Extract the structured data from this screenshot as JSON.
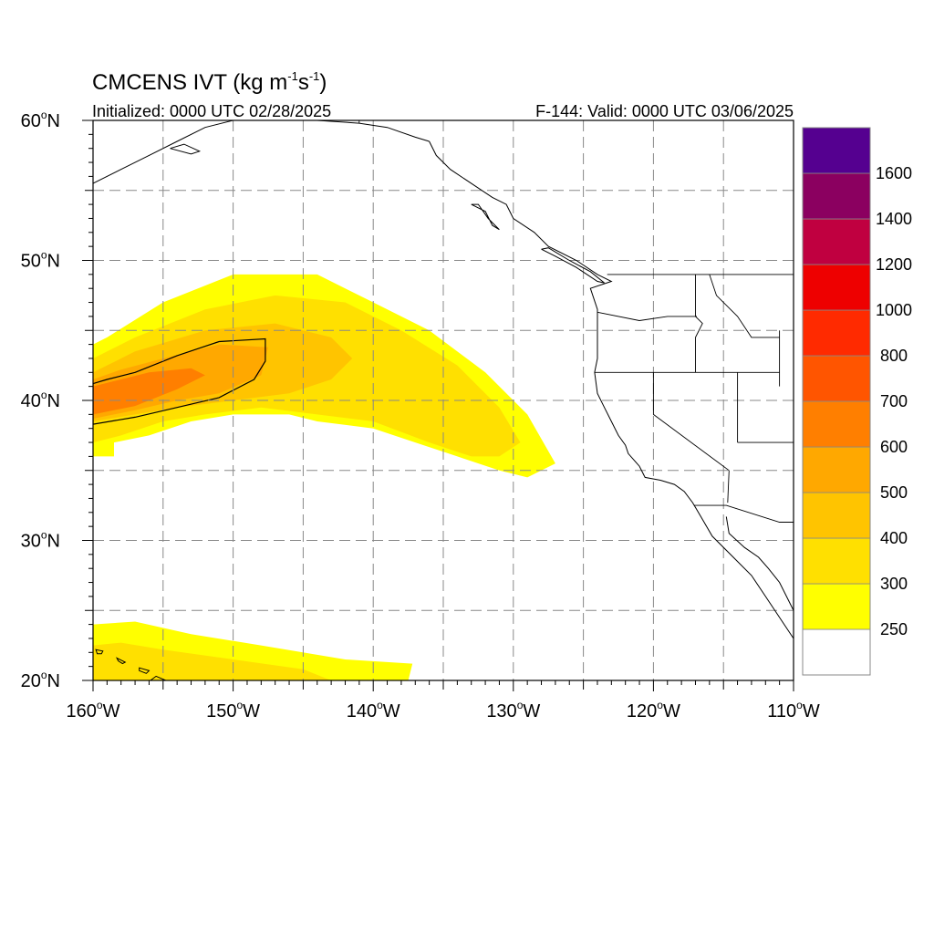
{
  "title": {
    "main": "CMCENS IVT (kg m",
    "sup1": "-1",
    "mid": "s",
    "sup2": "-1",
    "close": ")"
  },
  "subtitle_left": "Initialized: 0000 UTC 02/28/2025",
  "subtitle_right": "F-144: Valid: 0000 UTC 03/06/2025",
  "map": {
    "lon_range": [
      -160,
      -110
    ],
    "lat_range": [
      20,
      60
    ],
    "grid_lons": [
      -155,
      -150,
      -145,
      -140,
      -135,
      -130,
      -125,
      -120,
      -115
    ],
    "grid_lats": [
      25,
      30,
      35,
      40,
      45,
      50,
      55
    ],
    "lon_ticks": [
      {
        "lon": -160,
        "label": "160",
        "suffix": "W"
      },
      {
        "lon": -150,
        "label": "150",
        "suffix": "W"
      },
      {
        "lon": -140,
        "label": "140",
        "suffix": "W"
      },
      {
        "lon": -130,
        "label": "130",
        "suffix": "W"
      },
      {
        "lon": -120,
        "label": "120",
        "suffix": "W"
      },
      {
        "lon": -110,
        "label": "110",
        "suffix": "W"
      }
    ],
    "lat_ticks": [
      {
        "lat": 60,
        "label": "60",
        "suffix": "N"
      },
      {
        "lat": 50,
        "label": "50",
        "suffix": "N"
      },
      {
        "lat": 40,
        "label": "40",
        "suffix": "N"
      },
      {
        "lat": 30,
        "label": "30",
        "suffix": "N"
      },
      {
        "lat": 20,
        "label": "20",
        "suffix": "N"
      }
    ],
    "degree_symbol": "o"
  },
  "colorbar": {
    "levels": [
      "250",
      "300",
      "400",
      "500",
      "600",
      "700",
      "800",
      "1000",
      "1200",
      "1400",
      "1600"
    ],
    "colors": [
      "#ffffff",
      "#ffff00",
      "#ffe000",
      "#ffc400",
      "#ffa800",
      "#ff7f00",
      "#ff5500",
      "#ff2a00",
      "#ee0000",
      "#c00040",
      "#8b0060",
      "#550090"
    ]
  },
  "ivt_regions": [
    {
      "name": "main-river-250",
      "level": 250,
      "color": "#ffff00",
      "poly": [
        [
          -160,
          41
        ],
        [
          -160,
          36
        ],
        [
          -158.5,
          36
        ],
        [
          -158.5,
          37
        ],
        [
          -156,
          37.5
        ],
        [
          -153,
          38.5
        ],
        [
          -150,
          39
        ],
        [
          -146,
          39
        ],
        [
          -144,
          38.5
        ],
        [
          -140,
          38
        ],
        [
          -137,
          37
        ],
        [
          -134,
          36
        ],
        [
          -131,
          35
        ],
        [
          -129,
          34.5
        ],
        [
          -127,
          35.5
        ],
        [
          -129,
          39
        ],
        [
          -132,
          42
        ],
        [
          -136,
          45
        ],
        [
          -140,
          47
        ],
        [
          -144,
          49
        ],
        [
          -150,
          49
        ],
        [
          -155,
          47
        ],
        [
          -159,
          44.5
        ],
        [
          -160,
          44
        ]
      ]
    },
    {
      "name": "main-river-300",
      "level": 300,
      "color": "#ffe000",
      "poly": [
        [
          -160,
          43
        ],
        [
          -160,
          37
        ],
        [
          -158,
          37.5
        ],
        [
          -155,
          38.5
        ],
        [
          -152,
          39
        ],
        [
          -148,
          39.5
        ],
        [
          -144,
          39
        ],
        [
          -140,
          38.5
        ],
        [
          -136,
          37
        ],
        [
          -133,
          36
        ],
        [
          -131,
          36
        ],
        [
          -129.5,
          37
        ],
        [
          -131,
          39.5
        ],
        [
          -134,
          42.5
        ],
        [
          -138,
          45
        ],
        [
          -142,
          47
        ],
        [
          -147,
          47.5
        ],
        [
          -152,
          46.5
        ],
        [
          -157,
          44.5
        ]
      ]
    },
    {
      "name": "main-river-400",
      "level": 400,
      "color": "#ffc400",
      "poly": [
        [
          -160,
          42
        ],
        [
          -160,
          38.5
        ],
        [
          -157,
          39
        ],
        [
          -154,
          39.5
        ],
        [
          -150,
          40
        ],
        [
          -146,
          40.5
        ],
        [
          -143,
          41.5
        ],
        [
          -141.5,
          43
        ],
        [
          -143,
          44.5
        ],
        [
          -147,
          45.5
        ],
        [
          -152,
          45
        ],
        [
          -157,
          43.5
        ]
      ]
    },
    {
      "name": "main-river-500",
      "level": 500,
      "color": "#ffa800",
      "poly": [
        [
          -160,
          41.5
        ],
        [
          -160,
          38.7
        ],
        [
          -157,
          39.3
        ],
        [
          -154,
          40
        ],
        [
          -151,
          40.5
        ],
        [
          -148,
          41.8
        ],
        [
          -147.5,
          43.8
        ],
        [
          -151,
          44
        ],
        [
          -155,
          43
        ],
        [
          -158,
          42.2
        ]
      ]
    },
    {
      "name": "main-river-600",
      "level": 600,
      "color": "#ff7f00",
      "poly": [
        [
          -160,
          41
        ],
        [
          -160,
          39
        ],
        [
          -157,
          39.6
        ],
        [
          -154,
          40.8
        ],
        [
          -152,
          41.8
        ],
        [
          -153,
          42.3
        ],
        [
          -156,
          42
        ],
        [
          -158,
          41.5
        ]
      ]
    },
    {
      "name": "hawaii-river-250",
      "level": 250,
      "color": "#ffff00",
      "poly": [
        [
          -160,
          23.7
        ],
        [
          -160,
          20
        ],
        [
          -137.5,
          20
        ],
        [
          -137.2,
          21.2
        ],
        [
          -142,
          21.5
        ],
        [
          -148,
          22.5
        ],
        [
          -153,
          23.3
        ],
        [
          -157,
          24.2
        ],
        [
          -160,
          24
        ]
      ]
    },
    {
      "name": "hawaii-river-300",
      "level": 300,
      "color": "#ffe000",
      "poly": [
        [
          -160,
          22.5
        ],
        [
          -160,
          20
        ],
        [
          -143,
          20
        ],
        [
          -145,
          20.8
        ],
        [
          -150,
          21.5
        ],
        [
          -155,
          22.2
        ],
        [
          -158,
          22.7
        ]
      ]
    }
  ],
  "ivt_contour_500": {
    "name": "contour-500",
    "poly": [
      [
        -160,
        41.2
      ],
      [
        -160,
        38.3
      ],
      [
        -157,
        38.8
      ],
      [
        -154,
        39.5
      ],
      [
        -151,
        40.2
      ],
      [
        -148.5,
        41.5
      ],
      [
        -147.7,
        42.8
      ],
      [
        -147.7,
        44.4
      ],
      [
        -151,
        44.2
      ],
      [
        -154,
        43.2
      ],
      [
        -157,
        42
      ],
      [
        -159,
        41.5
      ]
    ]
  },
  "coastlines": [
    {
      "name": "north-america-west-coast",
      "pts": [
        [
          -136,
          58.5
        ],
        [
          -135.5,
          57.5
        ],
        [
          -134.5,
          56.5
        ],
        [
          -133,
          55.5
        ],
        [
          -131.5,
          54.5
        ],
        [
          -130.5,
          54
        ],
        [
          -130,
          53
        ],
        [
          -128.5,
          52
        ],
        [
          -127.5,
          51
        ],
        [
          -125.5,
          50
        ],
        [
          -124,
          49
        ],
        [
          -123,
          48.5
        ],
        [
          -124.5,
          48
        ],
        [
          -124,
          46.5
        ],
        [
          -124,
          45
        ],
        [
          -124,
          43
        ],
        [
          -124.2,
          42
        ],
        [
          -124,
          40.5
        ],
        [
          -123.5,
          39.5
        ],
        [
          -123,
          38.5
        ],
        [
          -122.5,
          37.5
        ],
        [
          -122,
          36.8
        ],
        [
          -121.8,
          36.2
        ],
        [
          -121,
          35.3
        ],
        [
          -120.6,
          34.5
        ],
        [
          -119.5,
          34.3
        ],
        [
          -118.5,
          34
        ],
        [
          -117.8,
          33.5
        ],
        [
          -117.2,
          32.7
        ],
        [
          -116.5,
          31.5
        ],
        [
          -115.8,
          30.3
        ],
        [
          -114.5,
          29
        ],
        [
          -113,
          27.5
        ],
        [
          -112,
          26
        ],
        [
          -111,
          24.5
        ],
        [
          -110,
          23
        ]
      ]
    },
    {
      "name": "gulf-of-california-coast",
      "pts": [
        [
          -114.8,
          31.7
        ],
        [
          -114.6,
          30.5
        ],
        [
          -113.5,
          29.5
        ],
        [
          -112.5,
          28.8
        ],
        [
          -111.8,
          28
        ],
        [
          -111,
          27
        ],
        [
          -110.5,
          26
        ],
        [
          -110,
          25
        ]
      ]
    },
    {
      "name": "alaska-gulf-coast",
      "pts": [
        [
          -160,
          55.5
        ],
        [
          -158,
          56.5
        ],
        [
          -156,
          57.5
        ],
        [
          -154,
          58.5
        ],
        [
          -152,
          59.5
        ],
        [
          -150,
          60
        ],
        [
          -147,
          60.3
        ],
        [
          -144,
          60
        ],
        [
          -141,
          59.8
        ],
        [
          -139,
          59.5
        ],
        [
          -137,
          58.8
        ],
        [
          -136,
          58.5
        ]
      ]
    },
    {
      "name": "vancouver-island",
      "pts": [
        [
          -128,
          50.8
        ],
        [
          -127,
          50.3
        ],
        [
          -125.5,
          49.5
        ],
        [
          -124,
          48.5
        ],
        [
          -123.5,
          48.4
        ],
        [
          -124.5,
          49.2
        ],
        [
          -126,
          50
        ],
        [
          -127.5,
          50.9
        ],
        [
          -128,
          50.8
        ]
      ]
    },
    {
      "name": "haida-gwaii",
      "pts": [
        [
          -133,
          54
        ],
        [
          -132,
          53.5
        ],
        [
          -131.5,
          52.5
        ],
        [
          -131,
          52.2
        ],
        [
          -131.8,
          53
        ],
        [
          -132.5,
          54
        ],
        [
          -133,
          54
        ]
      ]
    },
    {
      "name": "kodiak-island",
      "pts": [
        [
          -154.5,
          58
        ],
        [
          -153,
          57.6
        ],
        [
          -152.4,
          57.8
        ],
        [
          -153.5,
          58.3
        ],
        [
          -154.5,
          58
        ]
      ]
    }
  ],
  "borders": [
    {
      "name": "us-canada-border",
      "pts": [
        [
          -123.3,
          49
        ],
        [
          -110,
          49
        ]
      ]
    },
    {
      "name": "alaska-canada-border",
      "pts": [
        [
          -141,
          60
        ],
        [
          -141,
          59.8
        ]
      ]
    },
    {
      "name": "washington-oregon",
      "pts": [
        [
          -124,
          46.3
        ],
        [
          -121,
          45.7
        ],
        [
          -119,
          46
        ],
        [
          -116.9,
          46
        ]
      ]
    },
    {
      "name": "idaho-west",
      "pts": [
        [
          -117,
          49
        ],
        [
          -117,
          46
        ],
        [
          -116.5,
          45.5
        ],
        [
          -117,
          44.5
        ],
        [
          -117,
          42
        ]
      ]
    },
    {
      "name": "oregon-california-nevada",
      "pts": [
        [
          -124.2,
          42
        ],
        [
          -111,
          42
        ]
      ]
    },
    {
      "name": "california-nevada",
      "pts": [
        [
          -120,
          42
        ],
        [
          -120,
          39
        ],
        [
          -114.6,
          35
        ]
      ]
    },
    {
      "name": "nevada-utah",
      "pts": [
        [
          -114,
          42
        ],
        [
          -114,
          37
        ]
      ]
    },
    {
      "name": "utah-arizona",
      "pts": [
        [
          -114,
          37
        ],
        [
          -110,
          37
        ]
      ]
    },
    {
      "name": "arizona-california",
      "pts": [
        [
          -114.6,
          35
        ],
        [
          -114.7,
          32.7
        ]
      ]
    },
    {
      "name": "us-mexico-border",
      "pts": [
        [
          -117.1,
          32.5
        ],
        [
          -114.8,
          32.5
        ],
        [
          -111,
          31.3
        ],
        [
          -110,
          31.3
        ]
      ]
    },
    {
      "name": "idaho-montana",
      "pts": [
        [
          -116,
          49
        ],
        [
          -115.5,
          47.5
        ],
        [
          -114,
          46
        ],
        [
          -113,
          44.5
        ],
        [
          -111,
          44.5
        ]
      ]
    },
    {
      "name": "wyoming-west",
      "pts": [
        [
          -111,
          45
        ],
        [
          -111,
          41
        ]
      ]
    }
  ],
  "islands": [
    {
      "name": "hawaii-big-island",
      "pts": [
        [
          -155.9,
          20
        ],
        [
          -155,
          19.5
        ],
        [
          -154.8,
          20
        ],
        [
          -155.5,
          20.3
        ]
      ]
    },
    {
      "name": "maui",
      "pts": [
        [
          -156.7,
          20.9
        ],
        [
          -156,
          20.7
        ],
        [
          -156.2,
          20.5
        ],
        [
          -156.7,
          20.7
        ]
      ]
    },
    {
      "name": "oahu",
      "pts": [
        [
          -158.3,
          21.6
        ],
        [
          -157.7,
          21.3
        ],
        [
          -157.9,
          21.2
        ],
        [
          -158.2,
          21.4
        ]
      ]
    },
    {
      "name": "kauai",
      "pts": [
        [
          -159.8,
          22.2
        ],
        [
          -159.3,
          22.1
        ],
        [
          -159.4,
          21.9
        ],
        [
          -159.7,
          21.9
        ]
      ]
    }
  ]
}
